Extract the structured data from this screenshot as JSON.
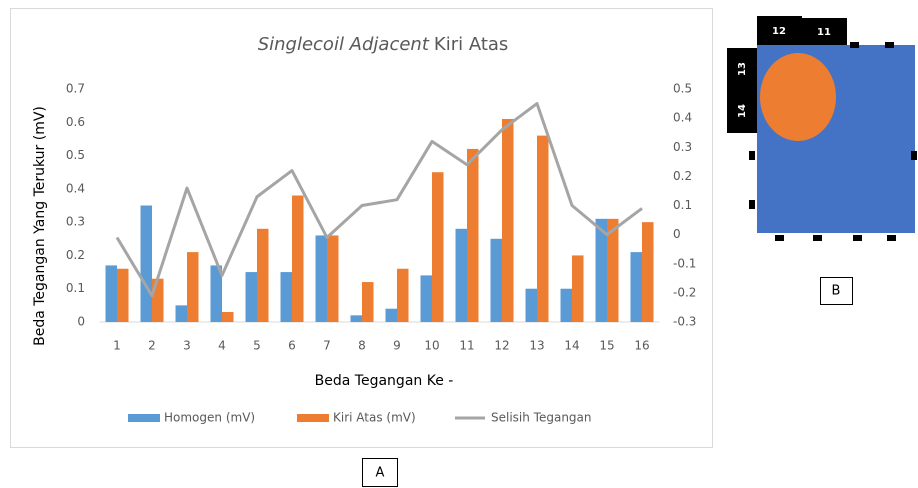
{
  "chart_data": {
    "type": "bar_line",
    "title_parts": [
      {
        "text": "Singlecoil Adjacent",
        "italic": true
      },
      {
        "text": "Kiri Atas",
        "italic": false
      }
    ],
    "x_label": "Beda Tegangan Ke -",
    "y_label": "Beda Tegangan Yang Terukur (mV)",
    "categories": [
      "1",
      "2",
      "3",
      "4",
      "5",
      "6",
      "7",
      "8",
      "9",
      "10",
      "11",
      "12",
      "13",
      "14",
      "15",
      "16"
    ],
    "series": [
      {
        "name": "Homogen (mV)",
        "type": "bar",
        "color": "#5b9bd5",
        "values": [
          0.17,
          0.35,
          0.05,
          0.17,
          0.15,
          0.15,
          0.26,
          0.02,
          0.04,
          0.14,
          0.28,
          0.25,
          0.1,
          0.1,
          0.31,
          0.21
        ]
      },
      {
        "name": "Kiri Atas (mV)",
        "type": "bar",
        "color": "#ed7d31",
        "values": [
          0.16,
          0.13,
          0.21,
          0.03,
          0.28,
          0.38,
          0.26,
          0.12,
          0.16,
          0.45,
          0.52,
          0.61,
          0.56,
          0.2,
          0.31,
          0.3
        ]
      },
      {
        "name": "Selisih Tegangan",
        "type": "line",
        "axis": "y2",
        "color": "#a5a5a5",
        "values": [
          -0.01,
          -0.21,
          0.16,
          -0.14,
          0.13,
          0.22,
          -0.01,
          0.1,
          0.12,
          0.32,
          0.24,
          0.36,
          0.45,
          0.1,
          0.0,
          0.09
        ]
      }
    ],
    "ylim": [
      0,
      0.7
    ],
    "yticks": [
      0,
      0.1,
      0.2,
      0.3,
      0.4,
      0.5,
      0.6,
      0.7
    ],
    "y2lim": [
      -0.3,
      0.5
    ],
    "y2ticks": [
      -0.3,
      -0.2,
      -0.1,
      0,
      0.1,
      0.2,
      0.3,
      0.4,
      0.5
    ],
    "grid": false,
    "legend": "bottom"
  },
  "panel_labels": {
    "a": "A",
    "b": "B"
  },
  "diagram": {
    "electrodes": [
      "12",
      "11",
      "13",
      "14"
    ]
  }
}
